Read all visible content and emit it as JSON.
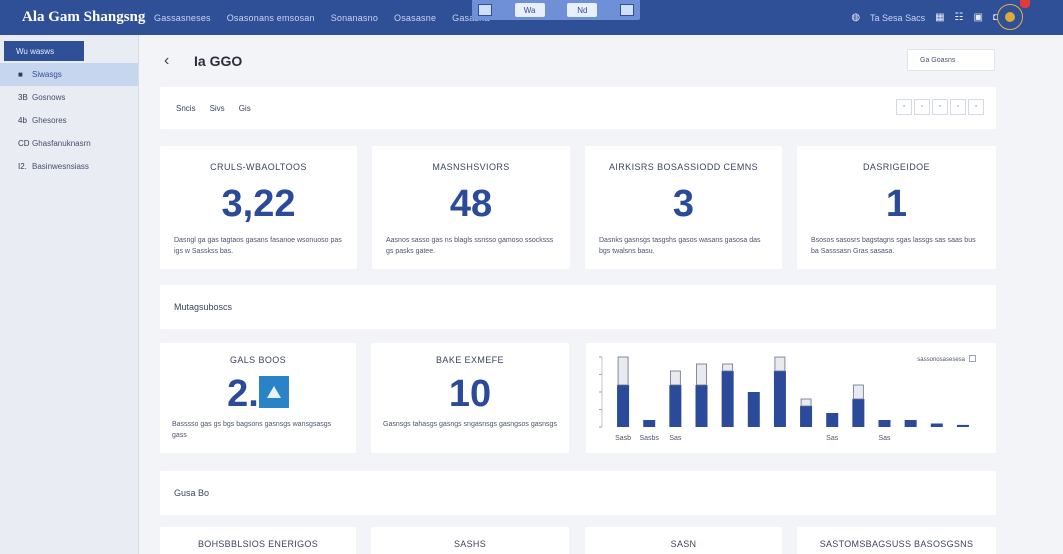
{
  "app": {
    "title": "Ala Gam Shangsng"
  },
  "nav": [
    "Gassasneses",
    "Osasonans emsosan",
    "Sonanasno",
    "Osasasne",
    "Gasasna"
  ],
  "center_tools": {
    "pill1": "Wa",
    "pill2": "Nd"
  },
  "right_tools": {
    "text": "Ta Sesa Sacs"
  },
  "sidebar": {
    "header": "Wu wasws",
    "items": [
      {
        "icon": "■",
        "label": "Siwasgs"
      },
      {
        "icon": "3B",
        "label": "Gosnows"
      },
      {
        "icon": "4b",
        "label": "Ghesores"
      },
      {
        "icon": "CD",
        "label": "Ghasfanuknasrn"
      },
      {
        "icon": "I2.",
        "label": "Basinwesnsiass"
      }
    ]
  },
  "page": {
    "title": "Ia GGO",
    "top_button": "Ga Goasns"
  },
  "filters": [
    "Sncis",
    "Sivs",
    "Gis"
  ],
  "stats": [
    {
      "label": "CRULS-WBAOLTOOS",
      "value": "3,22",
      "desc": "Dasngl ga gas tagtaos gasans fasanoe wsonuoso pas igs w Sasskss bas."
    },
    {
      "label": "MASNSHSVIORS",
      "value": "48",
      "desc": "Aasnos sasso gas ns blagls ssnsso gamoso ssocksss gs pasks gatee."
    },
    {
      "label": "AIRKISRS BOSASSIODD CEMNS",
      "value": "3",
      "desc": "Dasnks gasnsgs tasgshs gasos wasans gasosa das bgs twalsns basu."
    },
    {
      "label": "DASRIGEIDOE",
      "value": "1",
      "desc": "Bsosos sasosrs bagstagns sgas lassgs sas saas bus ba Sasssasn Gras sasasa."
    }
  ],
  "section1": "Mutagsuboscs",
  "mini_stats": [
    {
      "label": "GALS BOOS",
      "value": "2.",
      "desc": "Basssso gas gs bgs bagsons gasnsgs wansgsasgs gass"
    },
    {
      "label": "BAKE EXMEFE",
      "value": "10",
      "desc": "Gasnsgs tahasgs gasngs sngasnsgs gasngsos gasnsgs"
    }
  ],
  "chart_data": {
    "type": "bar",
    "legend_text": "sassonosasesesa",
    "categories": [
      "Sasb",
      "Sasbs",
      "Sas",
      "",
      "",
      "",
      "",
      "",
      "Sas",
      "",
      "Sas",
      "",
      "",
      ""
    ],
    "series": [
      {
        "values": [
          6,
          1,
          6,
          6,
          8,
          5,
          8,
          3,
          2,
          4,
          1,
          1,
          0.5,
          0.3
        ]
      },
      {
        "values": [
          4,
          0,
          2,
          3,
          1,
          0,
          2,
          1,
          0,
          2,
          0,
          0,
          0,
          0
        ]
      }
    ],
    "ylim": [
      0,
      10
    ],
    "colors": {
      "primary": "#2b4a99",
      "secondary": "#e8eaef"
    }
  },
  "section2": "Gusa Bo",
  "bottom_cards": [
    "BOHSBBLSIOS ENERIGOS",
    "SASHS",
    "SASN",
    "SASTOMSBAGSUSS BASOSGSNS"
  ]
}
